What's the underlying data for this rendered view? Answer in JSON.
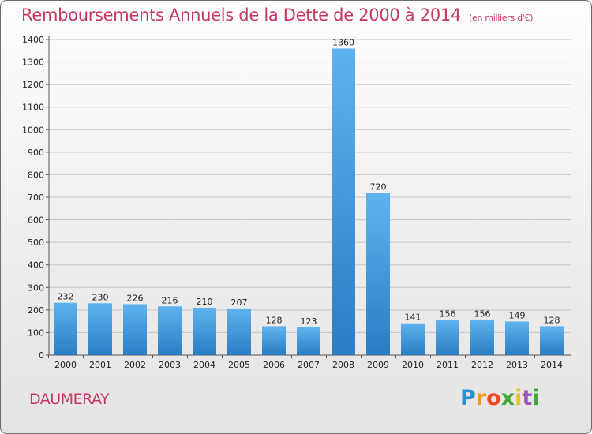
{
  "title": "Remboursements Annuels de la Dette de 2000 à 2014",
  "unit": "(en milliers d'€)",
  "commune": "DAUMERAY",
  "logo_text": "Proxiti",
  "colors": {
    "title": "#c4375e",
    "bar_light": "#5aaeea",
    "bar_dark": "#2a7fc4",
    "grid": "#c9c9c9",
    "axis_text": "#222222"
  },
  "chart_data": {
    "type": "bar",
    "title": "Remboursements Annuels de la Dette de 2000 à 2014",
    "categories": [
      "2000",
      "2001",
      "2002",
      "2003",
      "2004",
      "2005",
      "2006",
      "2007",
      "2008",
      "2009",
      "2010",
      "2011",
      "2012",
      "2013",
      "2014"
    ],
    "values": [
      232,
      230,
      226,
      216,
      210,
      207,
      128,
      123,
      1360,
      720,
      141,
      156,
      156,
      149,
      128
    ],
    "ylim": [
      0,
      1400
    ],
    "yticks": [
      0,
      100,
      200,
      300,
      400,
      500,
      600,
      700,
      800,
      900,
      1000,
      1100,
      1200,
      1300,
      1400
    ],
    "grid": true,
    "data_labels": true,
    "xlabel": "",
    "ylabel": ""
  }
}
